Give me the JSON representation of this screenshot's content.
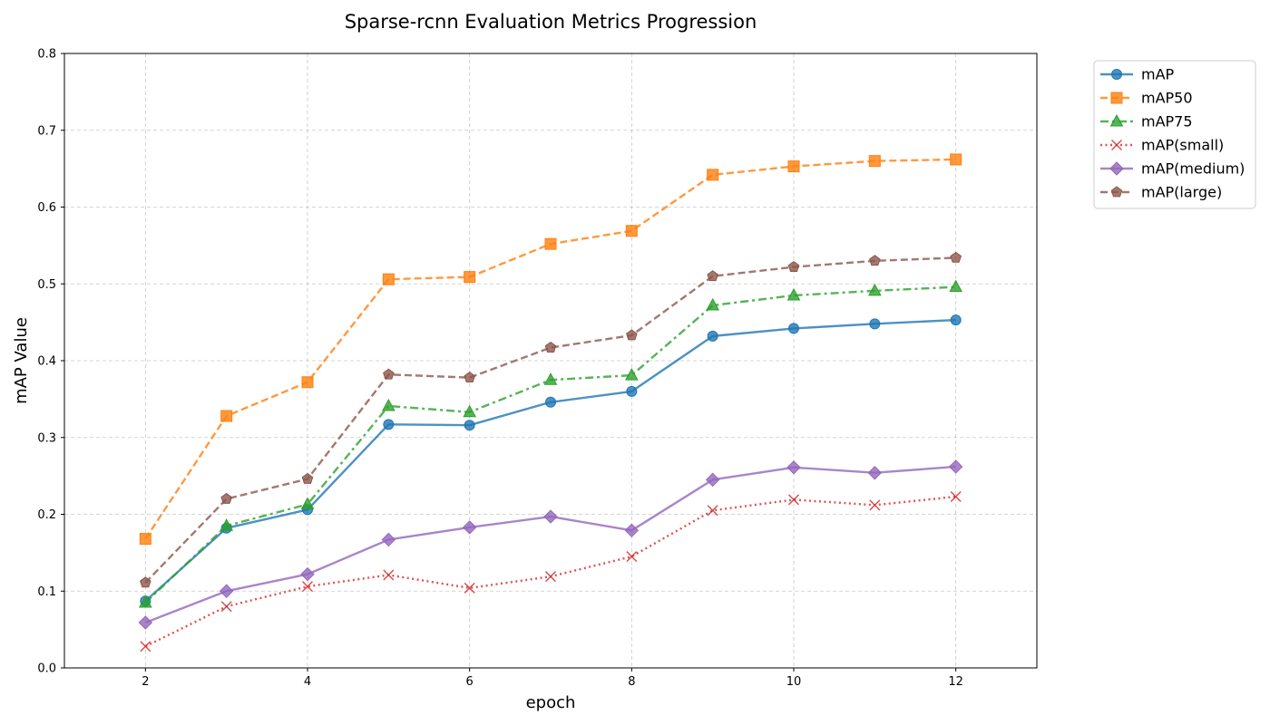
{
  "chart_data": {
    "type": "line",
    "title": "Sparse-rcnn Evaluation Metrics Progression",
    "xlabel": "epoch",
    "ylabel": "mAP Value",
    "xlim": [
      1,
      13
    ],
    "ylim": [
      0,
      0.8
    ],
    "xticks": [
      "2",
      "4",
      "6",
      "8",
      "10",
      "12"
    ],
    "yticks": [
      "0.0",
      "0.1",
      "0.2",
      "0.3",
      "0.4",
      "0.5",
      "0.6",
      "0.7",
      "0.8"
    ],
    "grid": true,
    "legend_position": "outside-top-right",
    "x": [
      2,
      3,
      4,
      5,
      6,
      7,
      8,
      9,
      10,
      11,
      12
    ],
    "series": [
      {
        "name": "mAP",
        "color": "#1f77b4",
        "marker": "circle",
        "dash": "solid",
        "values": [
          0.087,
          0.182,
          0.206,
          0.317,
          0.316,
          0.346,
          0.36,
          0.432,
          0.442,
          0.448,
          0.453
        ]
      },
      {
        "name": "mAP50",
        "color": "#ff7f0e",
        "marker": "square",
        "dash": "dashed",
        "values": [
          0.168,
          0.328,
          0.372,
          0.506,
          0.509,
          0.552,
          0.569,
          0.642,
          0.653,
          0.66,
          0.662
        ]
      },
      {
        "name": "mAP75",
        "color": "#2ca02c",
        "marker": "triangle",
        "dash": "dashdot",
        "values": [
          0.085,
          0.185,
          0.213,
          0.341,
          0.333,
          0.375,
          0.381,
          0.472,
          0.485,
          0.491,
          0.496
        ]
      },
      {
        "name": "mAP(small)",
        "color": "#d62728",
        "marker": "x",
        "dash": "dotted",
        "values": [
          0.028,
          0.08,
          0.106,
          0.121,
          0.104,
          0.119,
          0.145,
          0.205,
          0.219,
          0.212,
          0.223
        ]
      },
      {
        "name": "mAP(medium)",
        "color": "#9467bd",
        "marker": "diamond",
        "dash": "solid",
        "values": [
          0.059,
          0.1,
          0.122,
          0.167,
          0.183,
          0.197,
          0.179,
          0.245,
          0.261,
          0.254,
          0.262
        ]
      },
      {
        "name": "mAP(large)",
        "color": "#8c564b",
        "marker": "pentagon",
        "dash": "dashed",
        "values": [
          0.111,
          0.22,
          0.246,
          0.382,
          0.378,
          0.417,
          0.433,
          0.51,
          0.522,
          0.53,
          0.534
        ]
      }
    ]
  }
}
